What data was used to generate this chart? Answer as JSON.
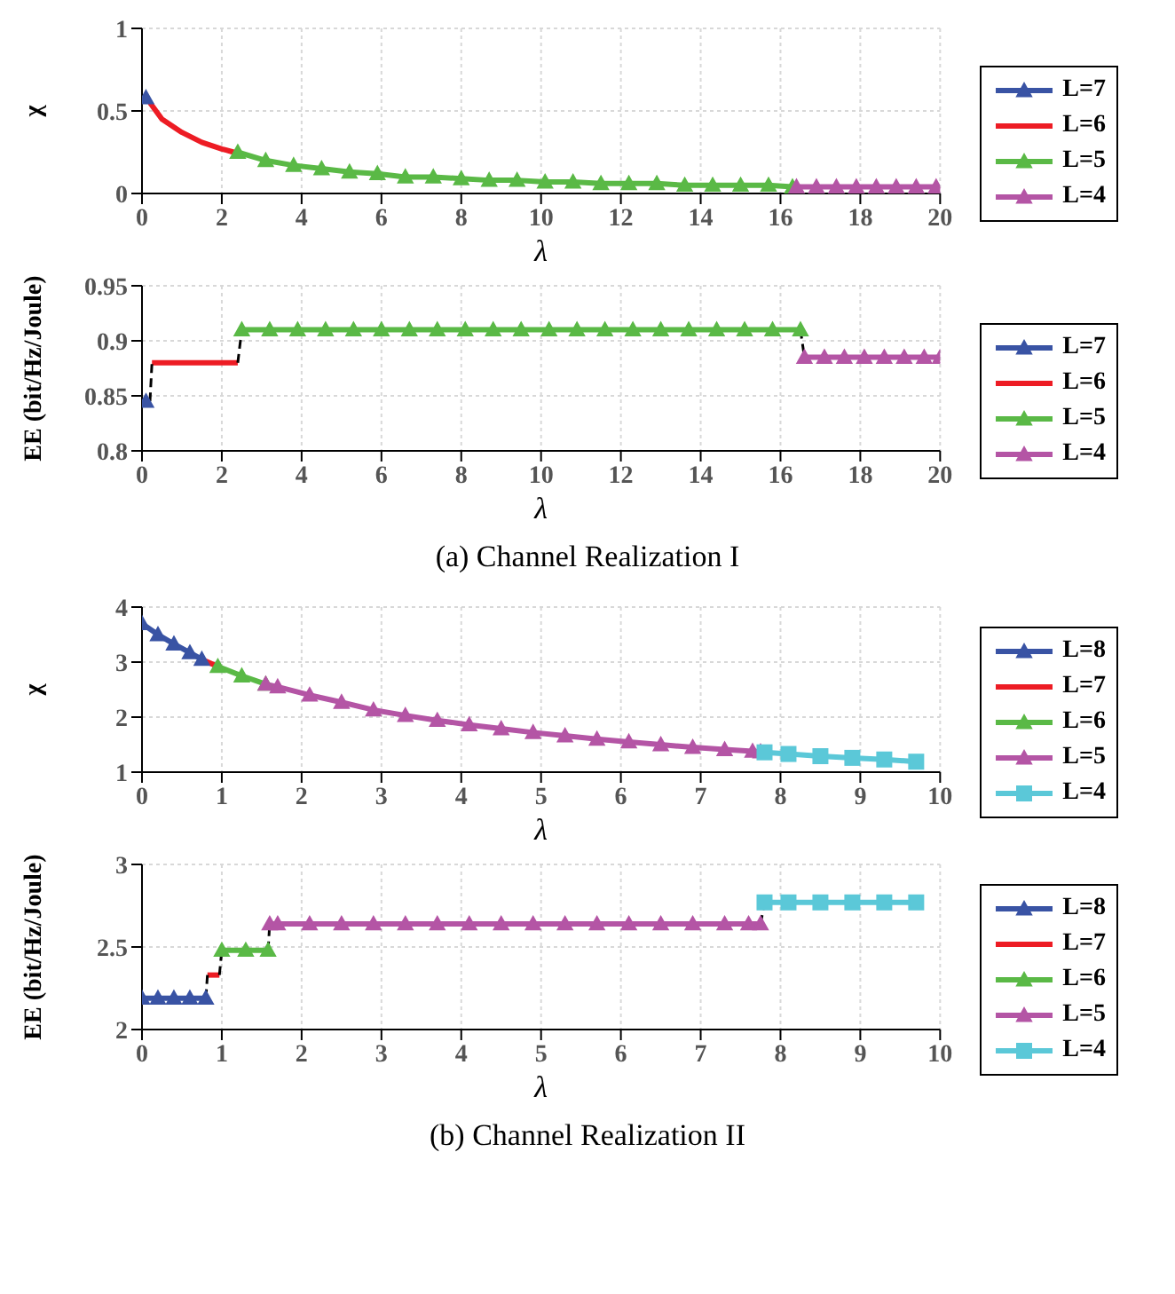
{
  "chart_data": [
    {
      "type": "line",
      "xlabel": "λ",
      "ylabel": "χ",
      "xlim": [
        0,
        20
      ],
      "xticks": [
        0,
        2,
        4,
        6,
        8,
        10,
        12,
        14,
        16,
        18,
        20
      ],
      "ylim": [
        0,
        1
      ],
      "yticks": [
        0,
        0.5,
        1
      ],
      "grid": true,
      "legend": "right",
      "series": [
        {
          "name": "L=7",
          "color": "#3953a4",
          "marker": "triangle",
          "x": [
            0.1
          ],
          "values": [
            0.58
          ]
        },
        {
          "name": "L=6",
          "color": "#ed1c24",
          "marker": "none",
          "x": [
            0.2,
            0.5,
            1,
            1.5,
            2,
            2.3
          ],
          "values": [
            0.55,
            0.45,
            0.37,
            0.31,
            0.27,
            0.25
          ]
        },
        {
          "name": "L=5",
          "color": "#5ab946",
          "marker": "triangle",
          "x": [
            2.4,
            3.1,
            3.8,
            4.5,
            5.2,
            5.9,
            6.6,
            7.3,
            8.0,
            8.7,
            9.4,
            10.1,
            10.8,
            11.5,
            12.2,
            12.9,
            13.6,
            14.3,
            15.0,
            15.7,
            16.3
          ],
          "values": [
            0.25,
            0.2,
            0.17,
            0.15,
            0.13,
            0.12,
            0.1,
            0.1,
            0.09,
            0.08,
            0.08,
            0.07,
            0.07,
            0.06,
            0.06,
            0.06,
            0.05,
            0.05,
            0.05,
            0.05,
            0.04
          ]
        },
        {
          "name": "L=4",
          "color": "#b455a5",
          "marker": "triangle",
          "x": [
            16.4,
            16.9,
            17.4,
            17.9,
            18.4,
            18.9,
            19.4,
            19.9
          ],
          "values": [
            0.04,
            0.04,
            0.04,
            0.04,
            0.04,
            0.04,
            0.04,
            0.04
          ]
        }
      ]
    },
    {
      "type": "line",
      "xlabel": "λ",
      "ylabel": "EE (bit/Hz/Joule)",
      "xlim": [
        0,
        20
      ],
      "xticks": [
        0,
        2,
        4,
        6,
        8,
        10,
        12,
        14,
        16,
        18,
        20
      ],
      "ylim": [
        0.8,
        0.95
      ],
      "yticks": [
        0.8,
        0.85,
        0.9,
        0.95
      ],
      "grid": true,
      "legend": "right",
      "annotations": [
        "(a) Channel Realization I"
      ],
      "series": [
        {
          "name": "L=7",
          "color": "#3953a4",
          "marker": "triangle",
          "x": [
            0.1
          ],
          "values": [
            0.845
          ]
        },
        {
          "name": "L=6",
          "color": "#ed1c24",
          "marker": "none",
          "x": [
            0.25,
            2.4
          ],
          "values": [
            0.88,
            0.88
          ]
        },
        {
          "name": "L=5",
          "color": "#5ab946",
          "marker": "triangle",
          "x": [
            2.5,
            3.2,
            3.9,
            4.6,
            5.3,
            6.0,
            6.7,
            7.4,
            8.1,
            8.8,
            9.5,
            10.2,
            10.9,
            11.6,
            12.3,
            13.0,
            13.7,
            14.4,
            15.1,
            15.8,
            16.5
          ],
          "values": [
            0.91,
            0.91,
            0.91,
            0.91,
            0.91,
            0.91,
            0.91,
            0.91,
            0.91,
            0.91,
            0.91,
            0.91,
            0.91,
            0.91,
            0.91,
            0.91,
            0.91,
            0.91,
            0.91,
            0.91,
            0.91
          ]
        },
        {
          "name": "L=4",
          "color": "#b455a5",
          "marker": "triangle",
          "x": [
            16.6,
            17.1,
            17.6,
            18.1,
            18.6,
            19.1,
            19.6,
            20
          ],
          "values": [
            0.885,
            0.885,
            0.885,
            0.885,
            0.885,
            0.885,
            0.885,
            0.885
          ]
        },
        {
          "color": "#000000",
          "marker": "none",
          "line_style": "dashed",
          "x": [
            0.2,
            0.25,
            1.3,
            2.4,
            2.5,
            9.5,
            16.5,
            16.6
          ],
          "values": [
            0.845,
            0.88,
            null,
            0.88,
            0.91,
            null,
            0.91,
            0.885
          ]
        }
      ]
    },
    {
      "type": "line",
      "xlabel": "λ",
      "ylabel": "χ",
      "xlim": [
        0,
        10
      ],
      "xticks": [
        0,
        1,
        2,
        3,
        4,
        5,
        6,
        7,
        8,
        9,
        10
      ],
      "ylim": [
        1,
        4
      ],
      "yticks": [
        1,
        2,
        3,
        4
      ],
      "grid": true,
      "legend": "right",
      "series": [
        {
          "name": "L=8",
          "color": "#3953a4",
          "marker": "triangle",
          "x": [
            0,
            0.2,
            0.4,
            0.6,
            0.75
          ],
          "values": [
            3.7,
            3.5,
            3.33,
            3.17,
            3.05
          ]
        },
        {
          "name": "L=7",
          "color": "#ed1c24",
          "marker": "none",
          "x": [
            0.75,
            0.95
          ],
          "values": [
            3.05,
            2.92
          ]
        },
        {
          "name": "L=6",
          "color": "#5ab946",
          "marker": "triangle",
          "x": [
            0.95,
            1.25,
            1.55
          ],
          "values": [
            2.92,
            2.75,
            2.6
          ]
        },
        {
          "name": "L=5",
          "color": "#b455a5",
          "marker": "triangle",
          "x": [
            1.55,
            1.7,
            2.1,
            2.5,
            2.9,
            3.3,
            3.7,
            4.1,
            4.5,
            4.9,
            5.3,
            5.7,
            6.1,
            6.5,
            6.9,
            7.3,
            7.65,
            7.75
          ],
          "values": [
            2.6,
            2.55,
            2.4,
            2.27,
            2.13,
            2.03,
            1.94,
            1.86,
            1.79,
            1.72,
            1.66,
            1.6,
            1.55,
            1.5,
            1.45,
            1.41,
            1.38,
            1.37
          ]
        },
        {
          "name": "L=4",
          "color": "#5bc8d8",
          "marker": "square",
          "x": [
            7.8,
            8.1,
            8.5,
            8.9,
            9.3,
            9.7
          ],
          "values": [
            1.36,
            1.33,
            1.29,
            1.26,
            1.23,
            1.19
          ]
        }
      ]
    },
    {
      "type": "line",
      "xlabel": "λ",
      "ylabel": "EE (bit/Hz/Joule)",
      "xlim": [
        0,
        10
      ],
      "xticks": [
        0,
        1,
        2,
        3,
        4,
        5,
        6,
        7,
        8,
        9,
        10
      ],
      "ylim": [
        2,
        3
      ],
      "yticks": [
        2,
        2.5,
        3
      ],
      "grid": true,
      "legend": "right",
      "annotations": [
        "(b) Channel Realization II"
      ],
      "series": [
        {
          "name": "L=8",
          "color": "#3953a4",
          "marker": "triangle",
          "x": [
            0,
            0.2,
            0.4,
            0.6,
            0.8
          ],
          "values": [
            2.19,
            2.19,
            2.19,
            2.19,
            2.19
          ]
        },
        {
          "name": "L=7",
          "color": "#ed1c24",
          "marker": "none",
          "x": [
            0.82,
            0.97
          ],
          "values": [
            2.33,
            2.33
          ]
        },
        {
          "name": "L=6",
          "color": "#5ab946",
          "marker": "triangle",
          "x": [
            1.0,
            1.3,
            1.58
          ],
          "values": [
            2.48,
            2.48,
            2.48
          ]
        },
        {
          "name": "L=5",
          "color": "#b455a5",
          "marker": "triangle",
          "x": [
            1.6,
            1.7,
            2.1,
            2.5,
            2.9,
            3.3,
            3.7,
            4.1,
            4.5,
            4.9,
            5.3,
            5.7,
            6.1,
            6.5,
            6.9,
            7.3,
            7.6,
            7.75
          ],
          "values": [
            2.64,
            2.64,
            2.64,
            2.64,
            2.64,
            2.64,
            2.64,
            2.64,
            2.64,
            2.64,
            2.64,
            2.64,
            2.64,
            2.64,
            2.64,
            2.64,
            2.64,
            2.64
          ]
        },
        {
          "name": "L=4",
          "color": "#5bc8d8",
          "marker": "square",
          "x": [
            7.8,
            8.1,
            8.5,
            8.9,
            9.3,
            9.7
          ],
          "values": [
            2.77,
            2.77,
            2.77,
            2.77,
            2.77,
            2.77
          ]
        },
        {
          "color": "#000000",
          "marker": "none",
          "line_style": "dashed",
          "x": [
            0.8,
            0.82,
            0.9,
            0.97,
            1.0,
            1.3,
            1.58,
            1.6,
            4.0,
            7.75,
            7.8
          ],
          "values": [
            2.19,
            2.33,
            null,
            2.33,
            2.48,
            null,
            2.48,
            2.64,
            null,
            2.64,
            2.77
          ]
        }
      ]
    }
  ]
}
